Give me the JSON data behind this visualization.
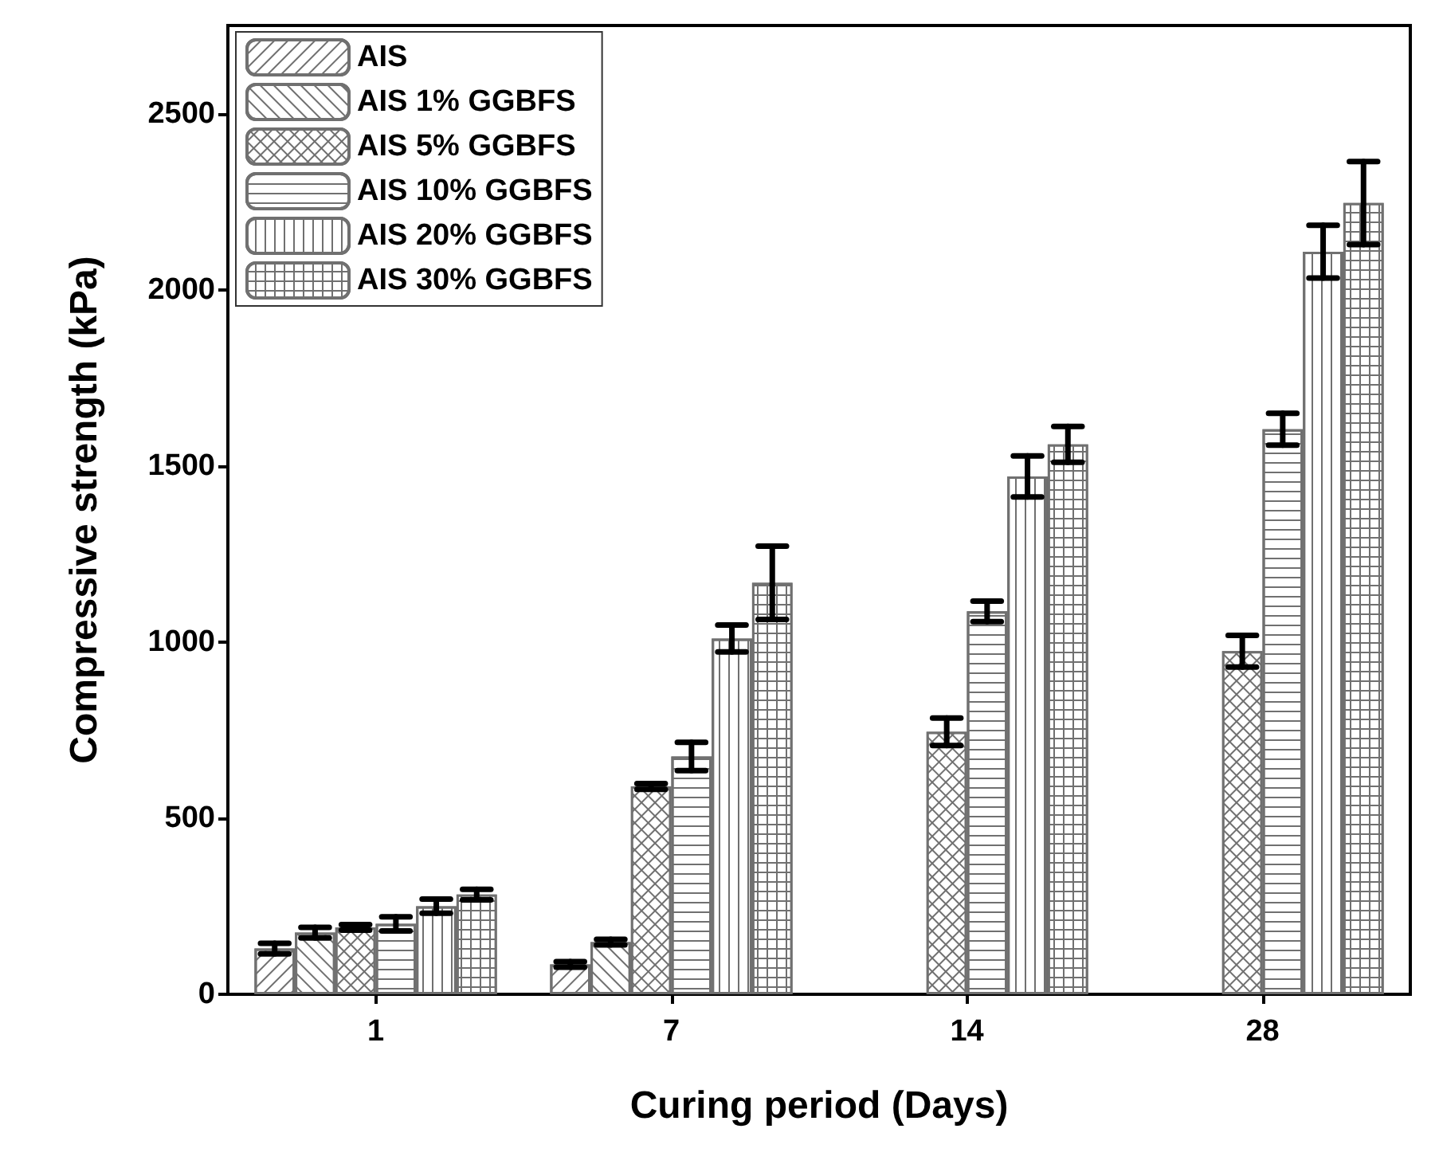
{
  "chart_data": {
    "type": "bar",
    "xlabel": "Curing period (Days)",
    "ylabel": "Compressive strength (kPa)",
    "categories": [
      "1",
      "7",
      "14",
      "28"
    ],
    "ylim": [
      0,
      2750
    ],
    "yticks": [
      0,
      500,
      1000,
      1500,
      2000,
      2500
    ],
    "grid": false,
    "legend": "top left",
    "series": [
      {
        "name": "AIS",
        "color": "#707070",
        "values": [
          130,
          85,
          null,
          null
        ],
        "errors": [
          15,
          8,
          null,
          null
        ]
      },
      {
        "name": "AIS 1% GGBFS",
        "color": "#707070",
        "values": [
          175,
          148,
          null,
          null
        ],
        "errors": [
          15,
          8,
          null,
          null
        ]
      },
      {
        "name": "AIS 5% GGBFS",
        "color": "#707070",
        "values": [
          190,
          590,
          745,
          974
        ],
        "errors": [
          8,
          8,
          39,
          45
        ]
      },
      {
        "name": "AIS 10% GGBFS",
        "color": "#707070",
        "values": [
          200,
          675,
          1087,
          1604
        ],
        "errors": [
          20,
          40,
          29,
          45
        ]
      },
      {
        "name": "AIS 20% GGBFS",
        "color": "#707070",
        "values": [
          250,
          1010,
          1470,
          2108
        ],
        "errors": [
          20,
          38,
          58,
          75
        ]
      },
      {
        "name": "AIS 30% GGBFS",
        "color": "#707070",
        "values": [
          283,
          1168,
          1561,
          2246
        ],
        "errors": [
          15,
          104,
          51,
          118
        ]
      }
    ]
  }
}
